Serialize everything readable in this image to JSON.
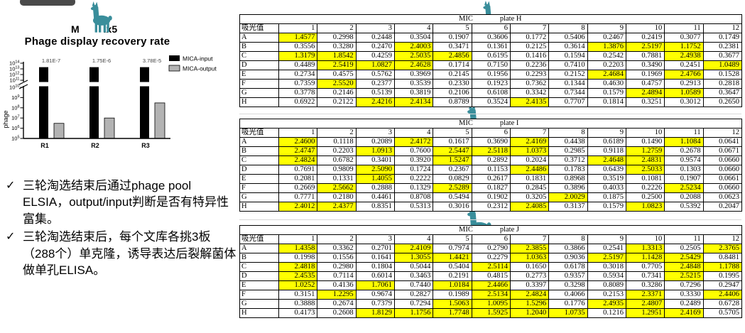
{
  "highlight_prefix": "*",
  "highlight_color": "#ffff00",
  "chart": {
    "title_fragment_left": "M",
    "title_fragment_right": "ix5",
    "subtitle": "Phage display  recovery rate"
  },
  "chart_data": {
    "type": "bar",
    "title": "Phage display recovery rate",
    "ylabel": "phage",
    "xlabel": "",
    "categories": [
      "R1",
      "R2",
      "R3"
    ],
    "series": [
      {
        "name": "MICA-input",
        "color": "#000000",
        "values": [
          20000000000000.0,
          20000000000000.0,
          20000000000000.0
        ]
      },
      {
        "name": "MICA-output",
        "color": "#b3b3b3",
        "values": [
          3000000.0,
          10000000.0,
          300000000.0
        ]
      }
    ],
    "annotations": [
      "1.81E-7",
      "1.75E-6",
      "3.78E-5"
    ],
    "y_scale": "log10",
    "y_axis_break_between": [
      10000000000.0,
      100000000000.0
    ],
    "y_ticks_exponents_upper": [
      14,
      13,
      12,
      11
    ],
    "y_ticks_exponents_lower": [
      10,
      9,
      8,
      7,
      6,
      5
    ],
    "legend_position": "top-right",
    "grid": false
  },
  "bullets": {
    "marker": "✓",
    "items": [
      "三轮淘选结束后通过phage pool ELSIA，output/input判断是否有特异性富集。",
      "三轮淘选结束后，每个文库各挑3板（288个）单克隆，诱导表达后裂解菌体做单孔ELISA。"
    ]
  },
  "plates": [
    {
      "plate": "H",
      "title_prefix": "MIC",
      "title_suffix": "plate H",
      "corner_label": "吸光值",
      "columns": [
        "1",
        "2",
        "3",
        "4",
        "5",
        "6",
        "7",
        "8",
        "9",
        "10",
        "11",
        "12"
      ],
      "row_labels": [
        "A",
        "B",
        "C",
        "D",
        "E",
        "F",
        "G",
        "H"
      ],
      "rows": [
        [
          "*1.4577",
          "0.2998",
          "0.2448",
          "0.3504",
          "0.1907",
          "0.3606",
          "0.1772",
          "0.5406",
          "0.2467",
          "0.2419",
          "0.3077",
          "0.1749"
        ],
        [
          "0.3556",
          "0.3280",
          "0.2470",
          "*2.4003",
          "0.3471",
          "0.1361",
          "0.2125",
          "0.3614",
          "*1.3876",
          "*2.5197",
          "*1.1752",
          "0.2381"
        ],
        [
          "*1.3179",
          "*1.8542",
          "0.4259",
          "*2.5035",
          "*2.4856",
          "0.6195",
          "0.1416",
          "0.1594",
          "0.2542",
          "0.7881",
          "*2.4938",
          "0.3677"
        ],
        [
          "0.4489",
          "*2.5419",
          "*1.0827",
          "*2.4628",
          "0.1714",
          "0.7150",
          "0.2236",
          "0.7410",
          "0.2203",
          "0.3490",
          "0.2451",
          "*1.0489"
        ],
        [
          "0.2734",
          "0.4575",
          "0.5762",
          "0.3969",
          "0.2145",
          "0.1956",
          "0.2293",
          "0.2152",
          "*2.4684",
          "0.1969",
          "*2.4766",
          "0.1528"
        ],
        [
          "0.7359",
          "*2.5520",
          "0.2377",
          "0.3539",
          "0.2330",
          "0.1923",
          "0.7362",
          "0.1344",
          "0.4630",
          "0.4757",
          "0.2913",
          "0.2818"
        ],
        [
          "0.3778",
          "0.2146",
          "0.5139",
          "0.3819",
          "0.2106",
          "0.6108",
          "0.3342",
          "0.7344",
          "0.1579",
          "*2.4894",
          "*1.0589",
          "0.3647"
        ],
        [
          "0.6922",
          "0.2122",
          "*2.4216",
          "*2.4134",
          "0.8789",
          "0.3524",
          "*2.4135",
          "0.7707",
          "0.1814",
          "0.3251",
          "0.3012",
          "0.2650"
        ]
      ]
    },
    {
      "plate": "I",
      "title_prefix": "MIC",
      "title_suffix": "plate I",
      "corner_label": "吸光值",
      "columns": [
        "1",
        "2",
        "3",
        "4",
        "5",
        "6",
        "7",
        "8",
        "9",
        "10",
        "11",
        "12"
      ],
      "row_labels": [
        "A",
        "B",
        "C",
        "D",
        "E",
        "F",
        "G",
        "H"
      ],
      "rows": [
        [
          "*2.4600",
          "0.1118",
          "0.2089",
          "*2.4172",
          "0.1617",
          "0.3690",
          "*2.4169",
          "0.4438",
          "0.6189",
          "0.1490",
          "*1.1084",
          "0.0641"
        ],
        [
          "*2.4747",
          "0.2203",
          "*1.0913",
          "0.7600",
          "*2.5447",
          "*2.5118",
          "*1.0373",
          "0.2985",
          "0.9118",
          "*1.2759",
          "0.2678",
          "0.0671"
        ],
        [
          "*2.4824",
          "0.6782",
          "0.3401",
          "0.3920",
          "*1.5247",
          "0.2892",
          "0.2024",
          "0.3712",
          "*2.4648",
          "*2.4831",
          "0.9574",
          "0.0660"
        ],
        [
          "0.7691",
          "0.9809",
          "*2.5090",
          "0.1724",
          "0.2367",
          "0.1153",
          "*2.4486",
          "0.1783",
          "0.6439",
          "*2.5033",
          "0.1303",
          "0.0660"
        ],
        [
          "0.2081",
          "0.1331",
          "*1.4055",
          "0.2222",
          "0.0829",
          "0.2617",
          "0.1831",
          "0.8968",
          "0.3519",
          "0.1081",
          "0.1907",
          "0.0661"
        ],
        [
          "0.2669",
          "*2.5662",
          "0.2888",
          "0.1329",
          "*2.5289",
          "0.1827",
          "0.2845",
          "0.3896",
          "0.4033",
          "0.2226",
          "*2.5234",
          "0.0660"
        ],
        [
          "0.7771",
          "0.2180",
          "0.4461",
          "0.8708",
          "0.5494",
          "0.1902",
          "0.3205",
          "*2.0029",
          "0.1875",
          "0.2500",
          "0.2088",
          "0.0623"
        ],
        [
          "*2.4012",
          "*2.4377",
          "0.8351",
          "0.5313",
          "0.3016",
          "0.2312",
          "*2.4085",
          "0.3137",
          "0.1579",
          "*1.0823",
          "0.5392",
          "0.2047"
        ]
      ]
    },
    {
      "plate": "J",
      "title_prefix": "MIC",
      "title_suffix": "plate J",
      "corner_label": "吸光值",
      "columns": [
        "1",
        "2",
        "3",
        "4",
        "5",
        "6",
        "7",
        "8",
        "9",
        "10",
        "11",
        "12"
      ],
      "row_labels": [
        "A",
        "B",
        "C",
        "D",
        "E",
        "F",
        "G",
        "H"
      ],
      "rows": [
        [
          "*1.4358",
          "0.3362",
          "0.2701",
          "*2.4109",
          "0.7974",
          "0.2790",
          "*2.3855",
          "0.3866",
          "0.2541",
          "*1.3313",
          "0.2505",
          "*2.3765"
        ],
        [
          "0.1998",
          "0.1556",
          "0.1641",
          "*1.3055",
          "*1.4421",
          "0.2279",
          "*1.0363",
          "0.9036",
          "*2.5197",
          "*1.1428",
          "*2.5429",
          "0.8481"
        ],
        [
          "*2.4818",
          "0.2980",
          "0.1804",
          "0.5044",
          "0.5404",
          "*2.5114",
          "0.1650",
          "0.6178",
          "0.3018",
          "0.7705",
          "*2.4848",
          "*1.1788"
        ],
        [
          "*2.4535",
          "0.7114",
          "0.6014",
          "0.3463",
          "0.2191",
          "0.4815",
          "0.2773",
          "0.9357",
          "0.5934",
          "0.7341",
          "*2.5215",
          "0.1995"
        ],
        [
          "*1.0252",
          "0.4136",
          "*1.7061",
          "0.7440",
          "*1.0184",
          "*2.4466",
          "0.3397",
          "0.3298",
          "0.8089",
          "0.3286",
          "0.7296",
          "0.2947"
        ],
        [
          "0.3151",
          "*1.2295",
          "0.9674",
          "0.2827",
          "0.1989",
          "*2.5134",
          "*2.4824",
          "0.4066",
          "0.2153",
          "*2.3371",
          "0.3330",
          "*2.4406"
        ],
        [
          "0.3888",
          "0.2674",
          "0.7379",
          "0.7294",
          "*1.5063",
          "*1.0095",
          "*1.5296",
          "0.1776",
          "*2.4935",
          "*2.4807",
          "0.2489",
          "0.6728"
        ],
        [
          "0.4173",
          "0.2608",
          "*1.8129",
          "*1.1756",
          "*1.7748",
          "*1.5925",
          "*1.2040",
          "*1.0735",
          "0.1216",
          "*1.2951",
          "*2.4169",
          "0.5705"
        ]
      ]
    }
  ],
  "logo_color": "#3a8e9b"
}
